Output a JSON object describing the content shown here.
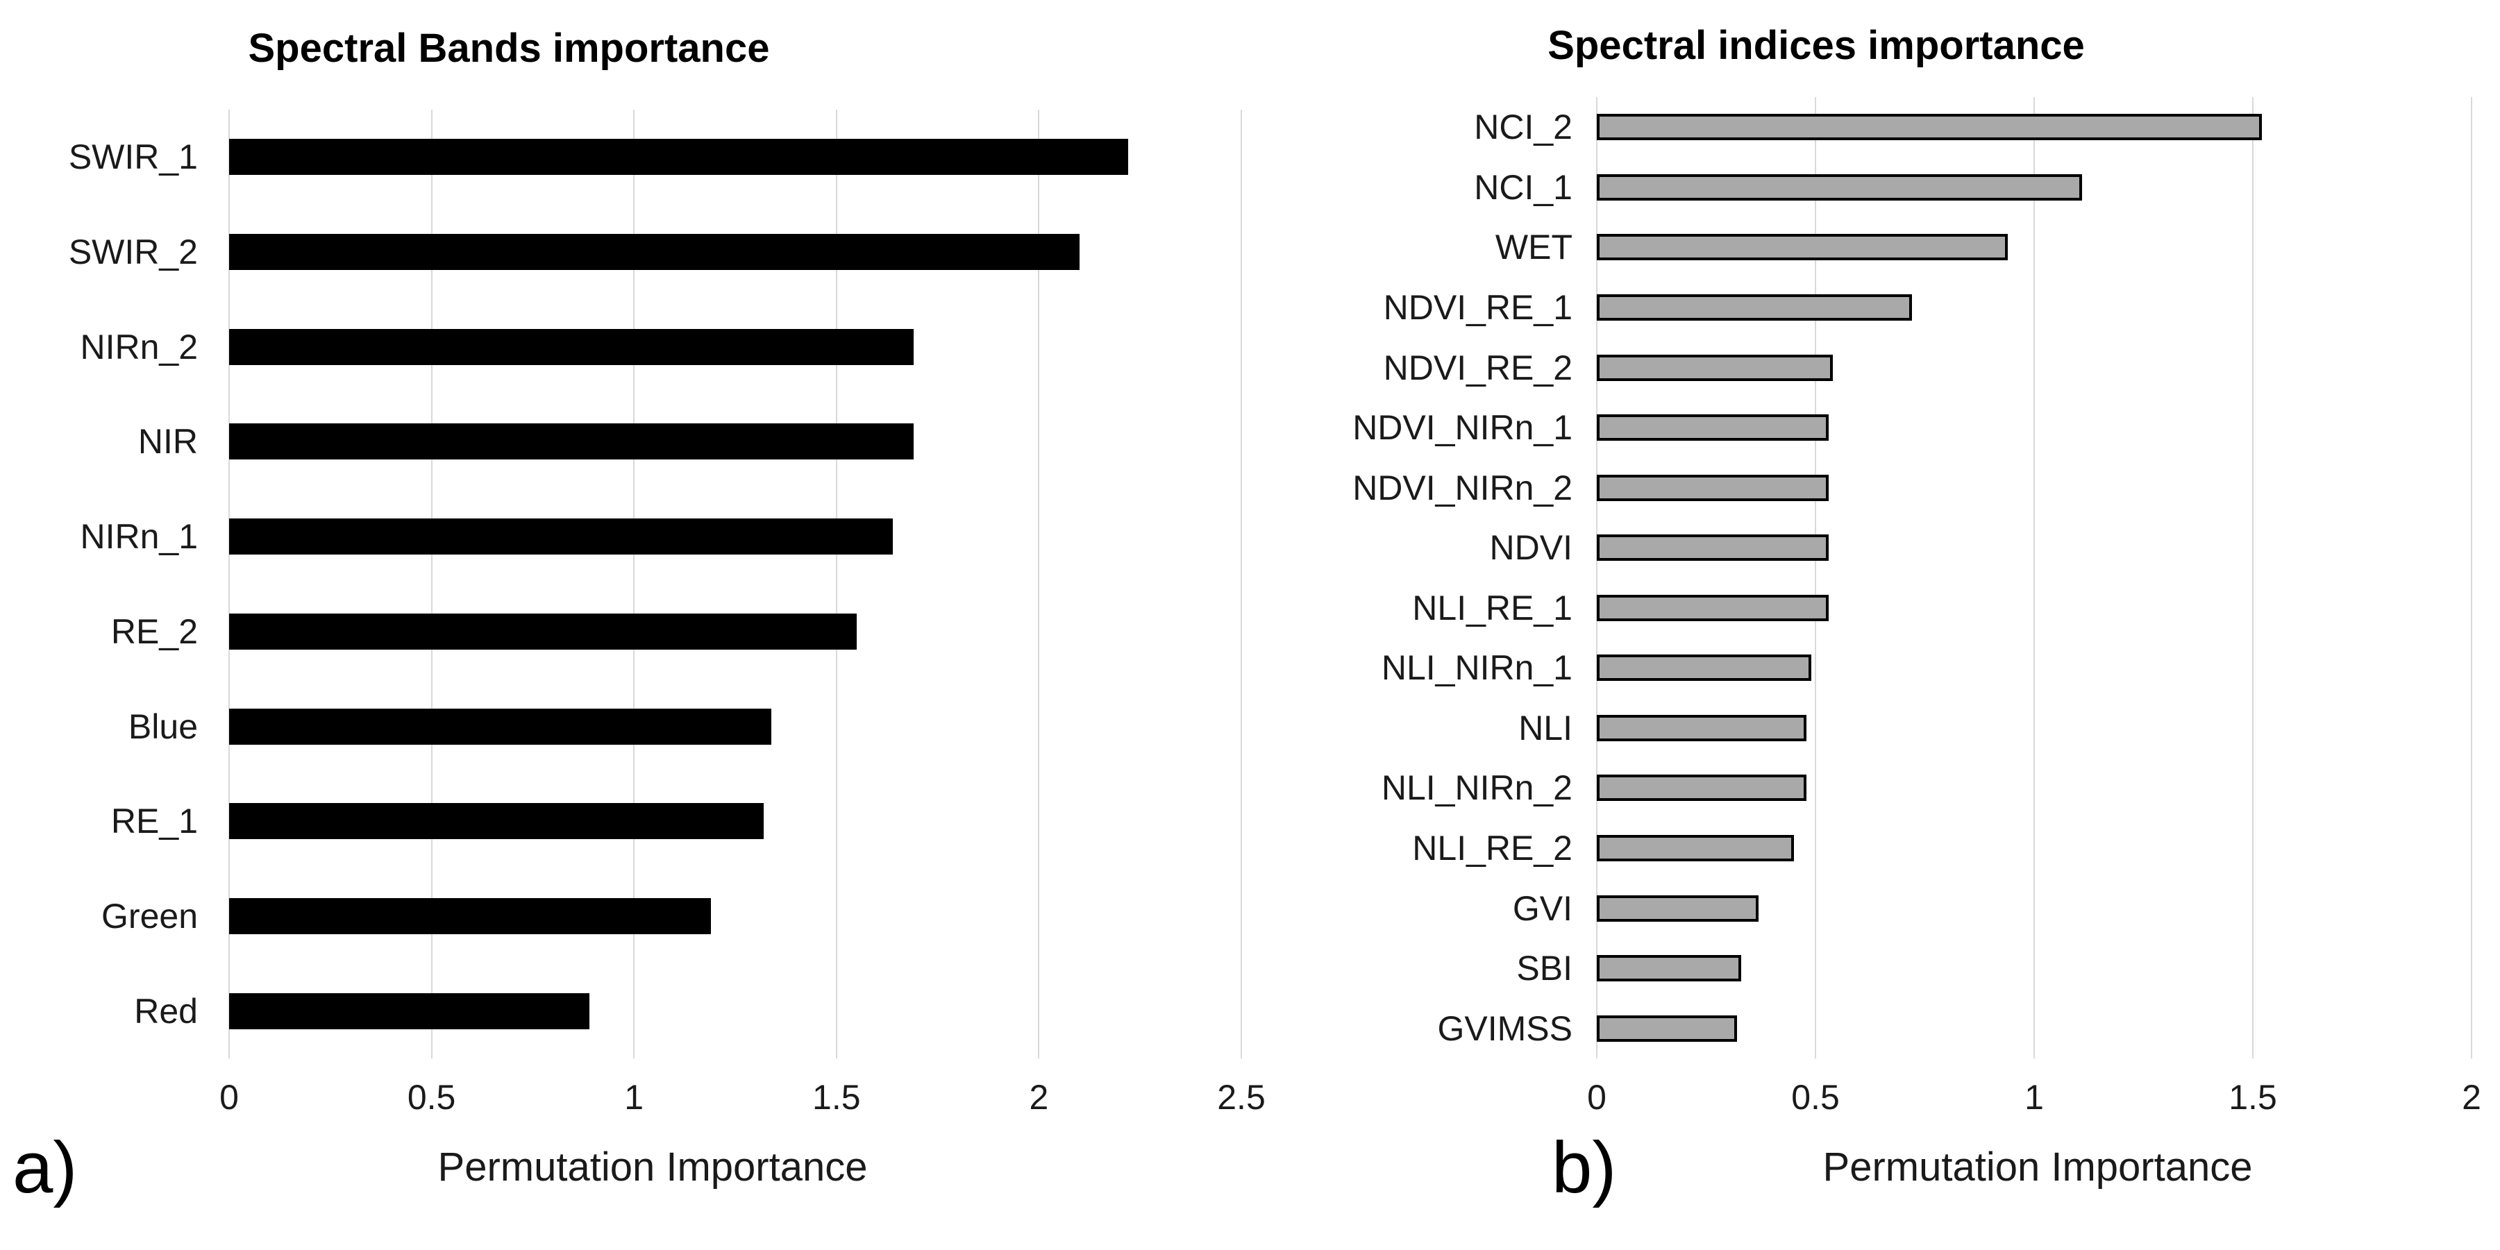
{
  "colors": {
    "background": "#ffffff",
    "gridline": "#d9d9d9",
    "text": "#1a1a1a",
    "bar_black": "#000000",
    "bar_gray": "#a9a9a9"
  },
  "chart_data": [
    {
      "type": "bar",
      "orientation": "horizontal",
      "panel_label": "a)",
      "title": "Spectral Bands importance",
      "xlabel": "Permutation Importance",
      "categories": [
        "SWIR_1",
        "SWIR_2",
        "NIRn_2",
        "NIR",
        "NIRn_1",
        "RE_2",
        "Blue",
        "RE_1",
        "Green",
        "Red"
      ],
      "values": [
        2.22,
        2.1,
        1.69,
        1.69,
        1.64,
        1.55,
        1.34,
        1.32,
        1.19,
        0.89
      ],
      "xlim": [
        0,
        2.5
      ],
      "x_tick_labels": [
        "0",
        "0.5",
        "1",
        "1.5",
        "2",
        "2.5"
      ],
      "bar_fill": "#000000",
      "bar_border": "none",
      "grid": true,
      "legend": false
    },
    {
      "type": "bar",
      "orientation": "horizontal",
      "panel_label": "b)",
      "title": "Spectral indices importance",
      "xlabel": "Permutation Importance",
      "categories": [
        "NCI_2",
        "NCI_1",
        "WET",
        "NDVI_RE_1",
        "NDVI_RE_2",
        "NDVI_NIRn_1",
        "NDVI_NIRn_2",
        "NDVI",
        "NLI_RE_1",
        "NLI_NIRn_1",
        "NLI",
        "NLI_NIRn_2",
        "NLI_RE_2",
        "GVI",
        "SBI",
        "GVIMSS"
      ],
      "values": [
        1.52,
        1.11,
        0.94,
        0.72,
        0.54,
        0.53,
        0.53,
        0.53,
        0.53,
        0.49,
        0.48,
        0.48,
        0.45,
        0.37,
        0.33,
        0.32
      ],
      "xlim": [
        0,
        2
      ],
      "x_tick_labels": [
        "0",
        "0.5",
        "1",
        "1.5",
        "2"
      ],
      "bar_fill": "#a9a9a9",
      "bar_border": "#000000",
      "grid": true,
      "legend": false
    }
  ]
}
